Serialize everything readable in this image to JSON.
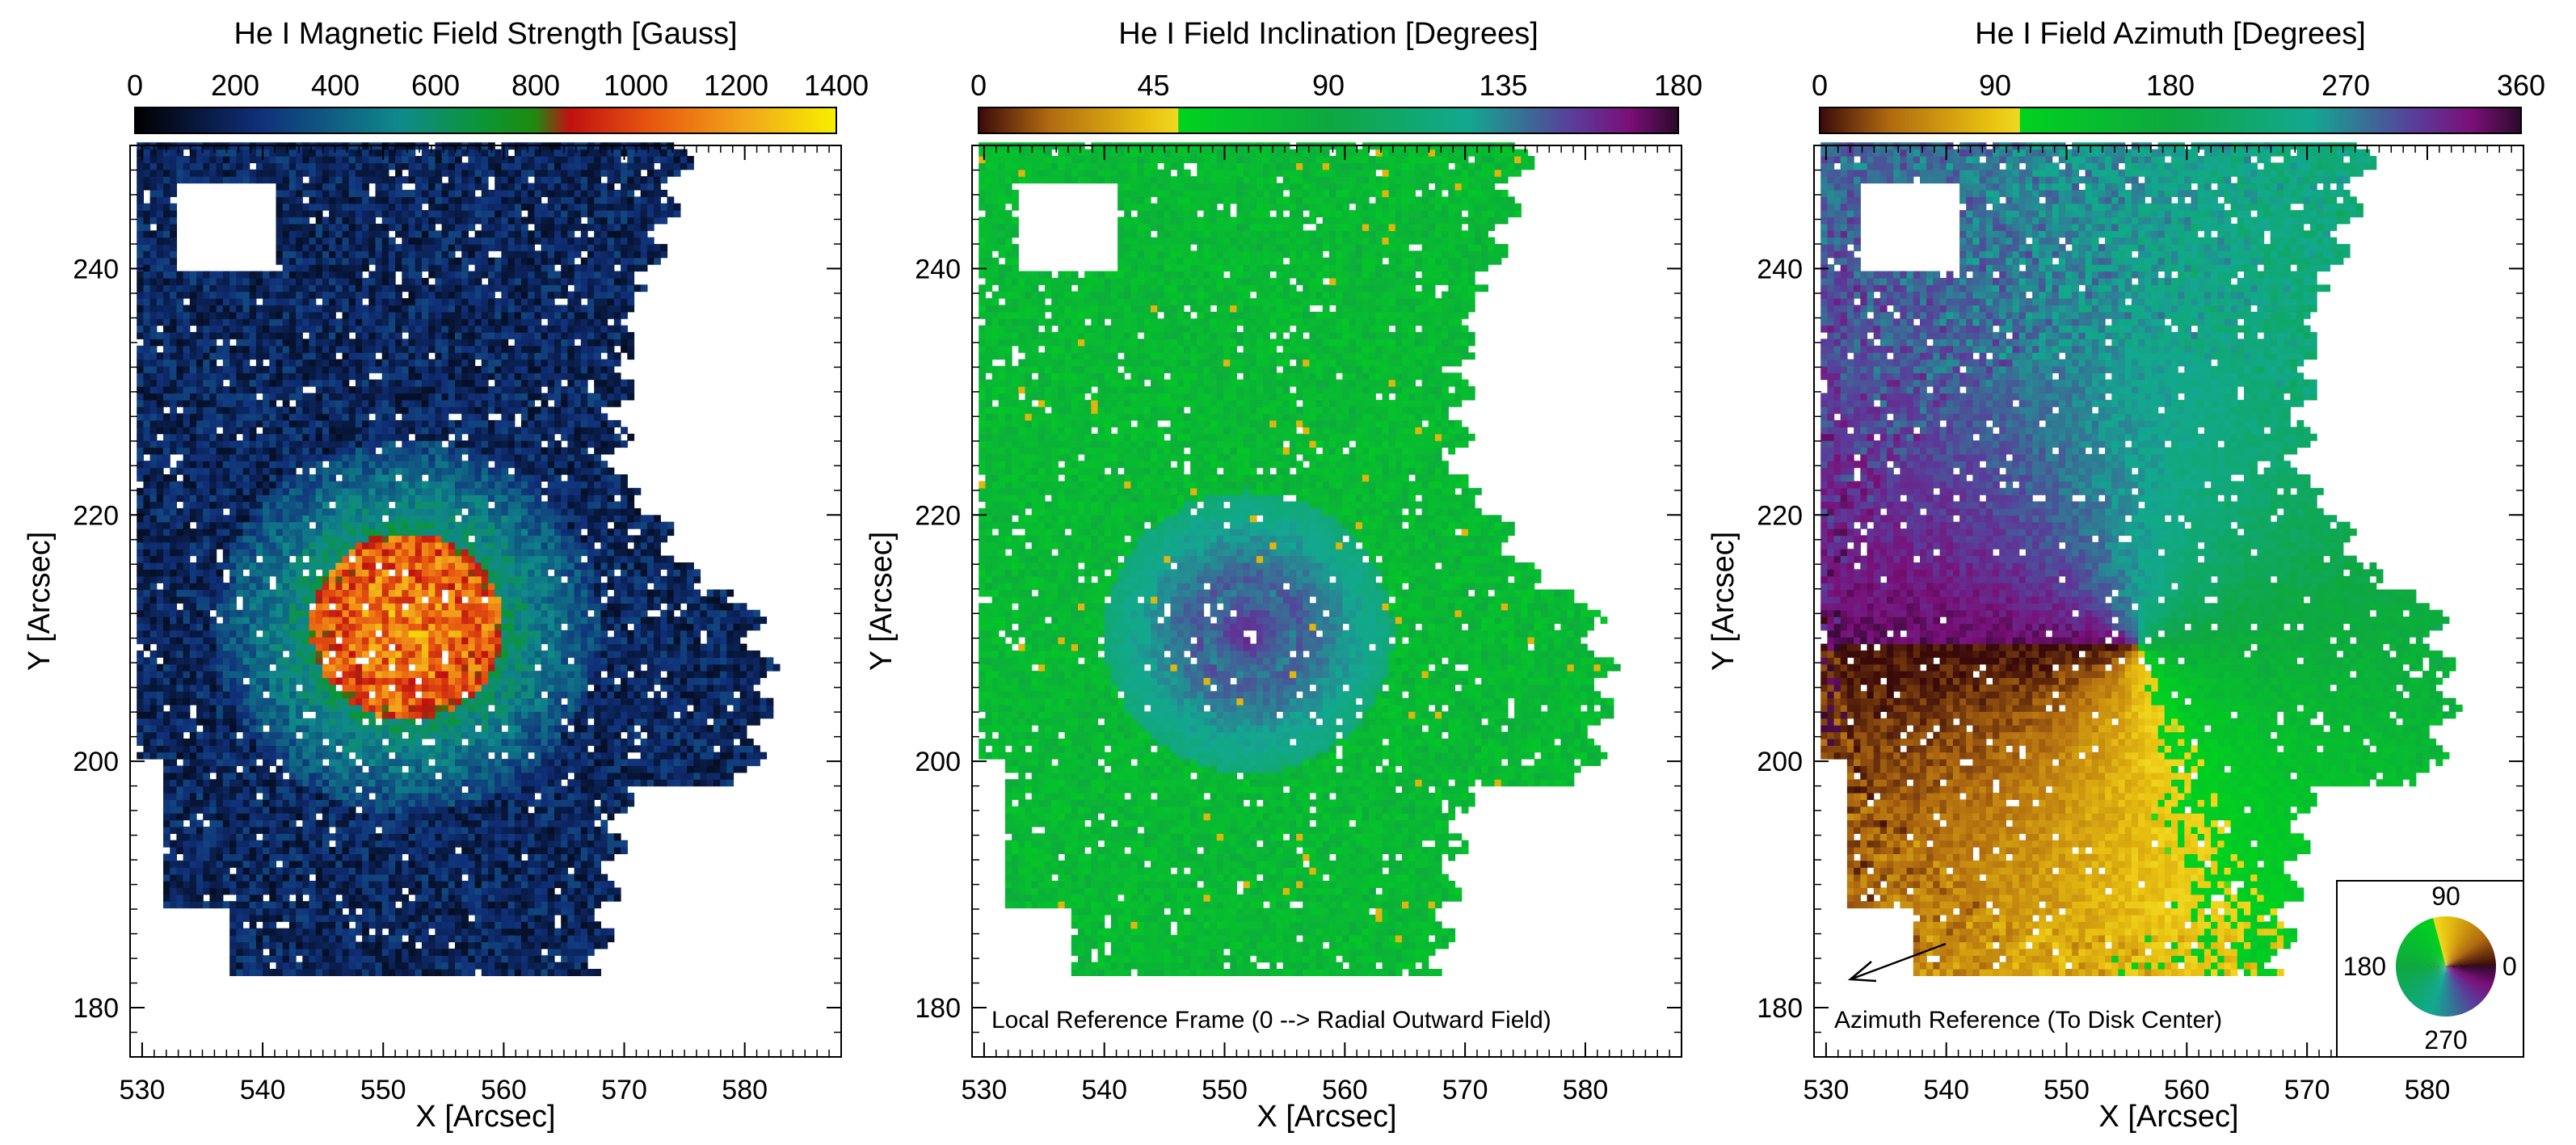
{
  "chart_data": [
    {
      "type": "heatmap",
      "title": "He I Magnetic Field Strength [Gauss]",
      "xlabel": "X [Arcsec]",
      "ylabel": "Y [Arcsec]",
      "xlim": [
        529,
        588
      ],
      "ylim": [
        176,
        250
      ],
      "x_ticks": [
        530,
        540,
        550,
        560,
        570,
        580
      ],
      "y_ticks": [
        180,
        200,
        220,
        240
      ],
      "colorbar": {
        "range": [
          0,
          1400
        ],
        "ticks": [
          0,
          200,
          400,
          600,
          800,
          1000,
          1200,
          1400
        ],
        "stops": [
          [
            0.0,
            "#000000"
          ],
          [
            0.18,
            "#10307a"
          ],
          [
            0.38,
            "#0f8a8a"
          ],
          [
            0.5,
            "#0b9632"
          ],
          [
            0.57,
            "#1f8a10"
          ],
          [
            0.62,
            "#c01010"
          ],
          [
            0.74,
            "#e85a10"
          ],
          [
            0.87,
            "#f2a61a"
          ],
          [
            1.0,
            "#f7f000"
          ]
        ]
      },
      "features": {
        "core_center": [
          552,
          211
        ],
        "core_value": 1000,
        "halo_value": 300,
        "outer_value": 150
      },
      "annotations": []
    },
    {
      "type": "heatmap",
      "title": "He I Field Inclination [Degrees]",
      "xlabel": "X [Arcsec]",
      "ylabel": "Y [Arcsec]",
      "xlim": [
        529,
        588
      ],
      "ylim": [
        176,
        250
      ],
      "x_ticks": [
        530,
        540,
        550,
        560,
        570,
        580
      ],
      "y_ticks": [
        180,
        200,
        220,
        240
      ],
      "colorbar": {
        "range": [
          0,
          180
        ],
        "ticks": [
          0,
          45,
          90,
          135,
          180
        ],
        "stops": [
          [
            0.0,
            "#3a0a0a"
          ],
          [
            0.1,
            "#b06a10"
          ],
          [
            0.24,
            "#e8c010"
          ],
          [
            0.285,
            "#f0d820"
          ],
          [
            0.286,
            "#00d21e"
          ],
          [
            0.5,
            "#0ea840"
          ],
          [
            0.7,
            "#12a890"
          ],
          [
            0.85,
            "#5a3c9a"
          ],
          [
            0.93,
            "#7a0f78"
          ],
          [
            1.0,
            "#2a0a2a"
          ]
        ]
      },
      "features": {
        "core_center": [
          552,
          210.5
        ],
        "core_value": 160,
        "halo_value": 115,
        "outer_value": 75
      },
      "annotations": [
        "Local Reference Frame (0 --> Radial Outward Field)"
      ]
    },
    {
      "type": "heatmap",
      "title": "He I Field Azimuth [Degrees]",
      "xlabel": "X [Arcsec]",
      "ylabel": "Y [Arcsec]",
      "xlim": [
        529,
        588
      ],
      "ylim": [
        176,
        250
      ],
      "x_ticks": [
        530,
        540,
        550,
        560,
        570,
        580
      ],
      "y_ticks": [
        180,
        200,
        220,
        240
      ],
      "colorbar": {
        "range": [
          0,
          360
        ],
        "ticks": [
          0,
          90,
          180,
          270,
          360
        ],
        "stops": [
          [
            0.0,
            "#3a0a0a"
          ],
          [
            0.1,
            "#b06a10"
          ],
          [
            0.24,
            "#e8c010"
          ],
          [
            0.285,
            "#f0d820"
          ],
          [
            0.286,
            "#00d21e"
          ],
          [
            0.5,
            "#0ea840"
          ],
          [
            0.7,
            "#12a890"
          ],
          [
            0.85,
            "#5a3c9a"
          ],
          [
            0.93,
            "#7a0f78"
          ],
          [
            1.0,
            "#2a0a2a"
          ]
        ]
      },
      "features": {
        "core_center": [
          556,
          209.5
        ]
      },
      "annotations": [
        "Azimuth Reference (To Disk Center)"
      ],
      "inset_wheel": {
        "labels": [
          "90",
          "180",
          "0",
          "270"
        ]
      }
    }
  ]
}
